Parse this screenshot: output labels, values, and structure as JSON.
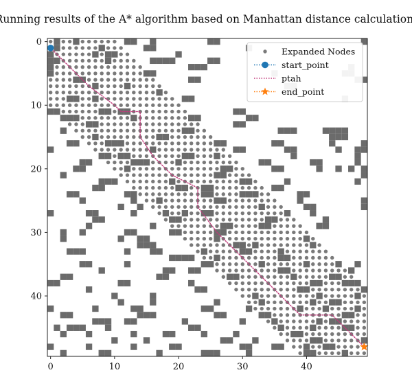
{
  "chart_data": {
    "type": "scatter",
    "title": "Running results of the A* algorithm based on Manhattan distance calculation:",
    "xlabel": "",
    "ylabel": "",
    "xlim": [
      -0.5,
      49.5
    ],
    "ylim": [
      49.5,
      -0.5
    ],
    "xticks": [
      0,
      10,
      20,
      30,
      40
    ],
    "yticks": [
      0,
      10,
      20,
      30,
      40
    ],
    "grid": false,
    "legend_position": "top-right",
    "colors": {
      "obstacle": "#6b6b6b",
      "expanded": "#7a7a7a",
      "start": "#1f77b4",
      "path": "#c0397a",
      "end": "#ff7f0e"
    },
    "legend": [
      {
        "label": "Expanded Nodes",
        "marker": "dot"
      },
      {
        "label": "start_point",
        "marker": "circle-dotted"
      },
      {
        "label": "ptah",
        "marker": "dotted-line"
      },
      {
        "label": "end_point",
        "marker": "star-dotted"
      }
    ],
    "start_point": [
      0,
      1
    ],
    "end_point": [
      49,
      48
    ],
    "path": [
      [
        0,
        1
      ],
      [
        6,
        7
      ],
      [
        10,
        10
      ],
      [
        11,
        11
      ],
      [
        14,
        11
      ],
      [
        14,
        15
      ],
      [
        16,
        18
      ],
      [
        19,
        21
      ],
      [
        23,
        23
      ],
      [
        23,
        26
      ],
      [
        26,
        30
      ],
      [
        31,
        35
      ],
      [
        39,
        43
      ],
      [
        44,
        43
      ],
      [
        49,
        48
      ]
    ],
    "expanded_band": {
      "halfwidth": 10.5,
      "x_range": [
        0,
        49
      ],
      "y_range": [
        0,
        49
      ]
    },
    "obstacles": [
      [
        1,
        0
      ],
      [
        4,
        0
      ],
      [
        12,
        0
      ],
      [
        13,
        0
      ],
      [
        16,
        0
      ],
      [
        25,
        0
      ],
      [
        26,
        0
      ],
      [
        49,
        0
      ],
      [
        1,
        1
      ],
      [
        8,
        1
      ],
      [
        15,
        1
      ],
      [
        16,
        1
      ],
      [
        31,
        1
      ],
      [
        0,
        2
      ],
      [
        7,
        2
      ],
      [
        9,
        2
      ],
      [
        10,
        2
      ],
      [
        20,
        2
      ],
      [
        0,
        3
      ],
      [
        1,
        3
      ],
      [
        9,
        3
      ],
      [
        16,
        3
      ],
      [
        17,
        3
      ],
      [
        18,
        3
      ],
      [
        19,
        3
      ],
      [
        25,
        3
      ],
      [
        26,
        3
      ],
      [
        0,
        4
      ],
      [
        22,
        4
      ],
      [
        23,
        4
      ],
      [
        24,
        4
      ],
      [
        47,
        4
      ],
      [
        0,
        5
      ],
      [
        15,
        5
      ],
      [
        16,
        5
      ],
      [
        35,
        5
      ],
      [
        46,
        5
      ],
      [
        47,
        5
      ],
      [
        4,
        6
      ],
      [
        5,
        6
      ],
      [
        22,
        6
      ],
      [
        23,
        6
      ],
      [
        48,
        6
      ],
      [
        49,
        6
      ],
      [
        7,
        7
      ],
      [
        12,
        7
      ],
      [
        37,
        7
      ],
      [
        38,
        7
      ],
      [
        17,
        8
      ],
      [
        38,
        8
      ],
      [
        3,
        9
      ],
      [
        4,
        9
      ],
      [
        7,
        9
      ],
      [
        21,
        9
      ],
      [
        22,
        9
      ],
      [
        46,
        9
      ],
      [
        0,
        11
      ],
      [
        1,
        11
      ],
      [
        8,
        11
      ],
      [
        9,
        11
      ],
      [
        11,
        11
      ],
      [
        12,
        11
      ],
      [
        29,
        11
      ],
      [
        30,
        11
      ],
      [
        2,
        12
      ],
      [
        3,
        12
      ],
      [
        4,
        12
      ],
      [
        13,
        12
      ],
      [
        22,
        12
      ],
      [
        23,
        12
      ],
      [
        31,
        12
      ],
      [
        32,
        12
      ],
      [
        6,
        13
      ],
      [
        7,
        13
      ],
      [
        29,
        13
      ],
      [
        30,
        13
      ],
      [
        2,
        14
      ],
      [
        21,
        14
      ],
      [
        22,
        14
      ],
      [
        36,
        14
      ],
      [
        37,
        14
      ],
      [
        38,
        14
      ],
      [
        43,
        14
      ],
      [
        44,
        14
      ],
      [
        45,
        14
      ],
      [
        46,
        14
      ],
      [
        7,
        15
      ],
      [
        17,
        15
      ],
      [
        18,
        15
      ],
      [
        44,
        15
      ],
      [
        45,
        15
      ],
      [
        46,
        15
      ],
      [
        3,
        16
      ],
      [
        4,
        16
      ],
      [
        9,
        16
      ],
      [
        10,
        16
      ],
      [
        11,
        16
      ],
      [
        26,
        16
      ],
      [
        27,
        16
      ],
      [
        35,
        16
      ],
      [
        36,
        16
      ],
      [
        44,
        16
      ],
      [
        49,
        16
      ],
      [
        0,
        17
      ],
      [
        16,
        17
      ],
      [
        29,
        17
      ],
      [
        30,
        17
      ],
      [
        37,
        17
      ],
      [
        38,
        17
      ],
      [
        45,
        17
      ],
      [
        48,
        17
      ],
      [
        49,
        17
      ],
      [
        8,
        18
      ],
      [
        9,
        18
      ],
      [
        11,
        18
      ],
      [
        12,
        18
      ],
      [
        21,
        18
      ],
      [
        22,
        18
      ],
      [
        26,
        18
      ],
      [
        38,
        18
      ],
      [
        48,
        18
      ],
      [
        5,
        19
      ],
      [
        6,
        19
      ],
      [
        13,
        19
      ],
      [
        14,
        19
      ],
      [
        15,
        19
      ],
      [
        20,
        19
      ],
      [
        33,
        19
      ],
      [
        34,
        19
      ],
      [
        41,
        19
      ],
      [
        42,
        19
      ],
      [
        48,
        19
      ],
      [
        4,
        20
      ],
      [
        5,
        20
      ],
      [
        12,
        20
      ],
      [
        27,
        20
      ],
      [
        28,
        20
      ],
      [
        35,
        20
      ],
      [
        36,
        20
      ],
      [
        42,
        20
      ],
      [
        45,
        20
      ],
      [
        47,
        20
      ],
      [
        49,
        20
      ],
      [
        2,
        21
      ],
      [
        26,
        21
      ],
      [
        27,
        21
      ],
      [
        49,
        21
      ],
      [
        8,
        22
      ],
      [
        9,
        22
      ],
      [
        10,
        22
      ],
      [
        19,
        22
      ],
      [
        30,
        22
      ],
      [
        31,
        22
      ],
      [
        37,
        22
      ],
      [
        48,
        22
      ],
      [
        7,
        23
      ],
      [
        8,
        23
      ],
      [
        20,
        23
      ],
      [
        21,
        23
      ],
      [
        24,
        23
      ],
      [
        25,
        23
      ],
      [
        35,
        23
      ],
      [
        36,
        23
      ],
      [
        3,
        24
      ],
      [
        4,
        24
      ],
      [
        12,
        24
      ],
      [
        13,
        24
      ],
      [
        24,
        24
      ],
      [
        25,
        24
      ],
      [
        30,
        24
      ],
      [
        31,
        24
      ],
      [
        32,
        24
      ],
      [
        39,
        24
      ],
      [
        40,
        24
      ],
      [
        5,
        25
      ],
      [
        13,
        25
      ],
      [
        17,
        25
      ],
      [
        26,
        25
      ],
      [
        27,
        25
      ],
      [
        39,
        25
      ],
      [
        49,
        25
      ],
      [
        11,
        26
      ],
      [
        14,
        26
      ],
      [
        33,
        26
      ],
      [
        40,
        26
      ],
      [
        41,
        26
      ],
      [
        49,
        26
      ],
      [
        0,
        27
      ],
      [
        6,
        27
      ],
      [
        7,
        27
      ],
      [
        13,
        27
      ],
      [
        18,
        27
      ],
      [
        21,
        27
      ],
      [
        24,
        27
      ],
      [
        25,
        27
      ],
      [
        37,
        27
      ],
      [
        41,
        27
      ],
      [
        7,
        28
      ],
      [
        8,
        28
      ],
      [
        19,
        28
      ],
      [
        20,
        28
      ],
      [
        34,
        28
      ],
      [
        35,
        28
      ],
      [
        43,
        28
      ],
      [
        6,
        29
      ],
      [
        16,
        29
      ],
      [
        27,
        29
      ],
      [
        28,
        29
      ],
      [
        33,
        29
      ],
      [
        34,
        29
      ],
      [
        42,
        29
      ],
      [
        43,
        29
      ],
      [
        2,
        30
      ],
      [
        5,
        30
      ],
      [
        12,
        30
      ],
      [
        13,
        30
      ],
      [
        19,
        30
      ],
      [
        20,
        30
      ],
      [
        26,
        30
      ],
      [
        27,
        30
      ],
      [
        2,
        31
      ],
      [
        11,
        31
      ],
      [
        14,
        31
      ],
      [
        15,
        31
      ],
      [
        26,
        31
      ],
      [
        40,
        31
      ],
      [
        14,
        32
      ],
      [
        15,
        32
      ],
      [
        16,
        32
      ],
      [
        29,
        32
      ],
      [
        30,
        32
      ],
      [
        32,
        32
      ],
      [
        41,
        32
      ],
      [
        3,
        33
      ],
      [
        4,
        33
      ],
      [
        5,
        33
      ],
      [
        12,
        33
      ],
      [
        16,
        33
      ],
      [
        17,
        33
      ],
      [
        24,
        33
      ],
      [
        30,
        33
      ],
      [
        31,
        33
      ],
      [
        36,
        33
      ],
      [
        19,
        34
      ],
      [
        20,
        34
      ],
      [
        21,
        34
      ],
      [
        22,
        34
      ],
      [
        26,
        34
      ],
      [
        36,
        34
      ],
      [
        37,
        34
      ],
      [
        5,
        35
      ],
      [
        6,
        35
      ],
      [
        12,
        35
      ],
      [
        24,
        35
      ],
      [
        25,
        35
      ],
      [
        33,
        35
      ],
      [
        40,
        35
      ],
      [
        45,
        35
      ],
      [
        48,
        35
      ],
      [
        8,
        36
      ],
      [
        18,
        36
      ],
      [
        19,
        36
      ],
      [
        22,
        36
      ],
      [
        23,
        36
      ],
      [
        36,
        36
      ],
      [
        37,
        36
      ],
      [
        47,
        36
      ],
      [
        2,
        37
      ],
      [
        3,
        37
      ],
      [
        17,
        37
      ],
      [
        18,
        37
      ],
      [
        28,
        37
      ],
      [
        29,
        37
      ],
      [
        38,
        37
      ],
      [
        44,
        37
      ],
      [
        45,
        37
      ],
      [
        0,
        38
      ],
      [
        1,
        38
      ],
      [
        11,
        38
      ],
      [
        12,
        38
      ],
      [
        22,
        38
      ],
      [
        41,
        38
      ],
      [
        42,
        38
      ],
      [
        46,
        38
      ],
      [
        47,
        38
      ],
      [
        48,
        38
      ],
      [
        6,
        39
      ],
      [
        23,
        39
      ],
      [
        24,
        39
      ],
      [
        39,
        39
      ],
      [
        40,
        39
      ],
      [
        49,
        39
      ],
      [
        10,
        40
      ],
      [
        16,
        40
      ],
      [
        32,
        40
      ],
      [
        42,
        40
      ],
      [
        48,
        40
      ],
      [
        11,
        41
      ],
      [
        16,
        41
      ],
      [
        26,
        41
      ],
      [
        33,
        41
      ],
      [
        41,
        41
      ],
      [
        44,
        41
      ],
      [
        45,
        41
      ],
      [
        0,
        42
      ],
      [
        7,
        42
      ],
      [
        13,
        42
      ],
      [
        14,
        42
      ],
      [
        24,
        42
      ],
      [
        25,
        42
      ],
      [
        31,
        42
      ],
      [
        39,
        42
      ],
      [
        43,
        42
      ],
      [
        48,
        42
      ],
      [
        2,
        43
      ],
      [
        3,
        43
      ],
      [
        14,
        43
      ],
      [
        15,
        43
      ],
      [
        16,
        43
      ],
      [
        26,
        43
      ],
      [
        27,
        43
      ],
      [
        33,
        43
      ],
      [
        34,
        43
      ],
      [
        46,
        43
      ],
      [
        47,
        43
      ],
      [
        7,
        44
      ],
      [
        8,
        44
      ],
      [
        9,
        44
      ],
      [
        12,
        44
      ],
      [
        13,
        44
      ],
      [
        21,
        44
      ],
      [
        30,
        44
      ],
      [
        35,
        44
      ],
      [
        42,
        44
      ],
      [
        44,
        44
      ],
      [
        45,
        44
      ],
      [
        1,
        45
      ],
      [
        3,
        45
      ],
      [
        4,
        45
      ],
      [
        5,
        45
      ],
      [
        9,
        45
      ],
      [
        22,
        45
      ],
      [
        23,
        45
      ],
      [
        36,
        45
      ],
      [
        41,
        45
      ],
      [
        46,
        45
      ],
      [
        47,
        45
      ],
      [
        2,
        46
      ],
      [
        6,
        46
      ],
      [
        13,
        46
      ],
      [
        18,
        46
      ],
      [
        19,
        46
      ],
      [
        24,
        46
      ],
      [
        29,
        46
      ],
      [
        38,
        46
      ],
      [
        39,
        46
      ],
      [
        10,
        47
      ],
      [
        15,
        47
      ],
      [
        27,
        47
      ],
      [
        28,
        47
      ],
      [
        32,
        47
      ],
      [
        41,
        47
      ],
      [
        42,
        47
      ],
      [
        49,
        47
      ],
      [
        0,
        48
      ],
      [
        6,
        48
      ],
      [
        13,
        48
      ],
      [
        19,
        48
      ],
      [
        20,
        48
      ],
      [
        30,
        48
      ],
      [
        31,
        48
      ],
      [
        35,
        48
      ],
      [
        36,
        48
      ],
      [
        40,
        48
      ],
      [
        43,
        48
      ],
      [
        44,
        48
      ],
      [
        2,
        49
      ],
      [
        8,
        49
      ],
      [
        9,
        49
      ],
      [
        17,
        49
      ],
      [
        24,
        49
      ],
      [
        25,
        49
      ],
      [
        26,
        49
      ],
      [
        31,
        49
      ],
      [
        40,
        49
      ],
      [
        41,
        49
      ],
      [
        46,
        49
      ]
    ]
  }
}
